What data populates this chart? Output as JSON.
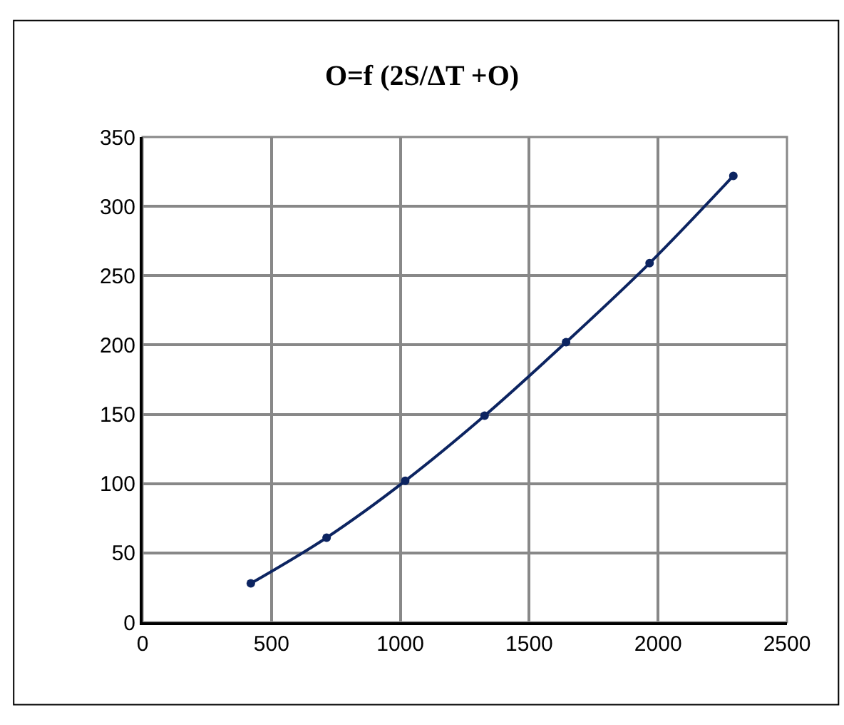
{
  "chart_data": {
    "type": "line",
    "title": "O=f (2S/ΔT +O)",
    "x": [
      420,
      714,
      1019,
      1327,
      1643,
      1967,
      2292
    ],
    "series": [
      {
        "color": "#0c2461",
        "values": [
          28,
          61,
          102,
          149,
          202,
          259,
          322
        ]
      }
    ],
    "xlim": [
      0,
      2500
    ],
    "xticks": [
      0,
      500,
      1000,
      1500,
      2000,
      2500
    ],
    "ylim": [
      0,
      350
    ],
    "yticks": [
      0,
      50,
      100,
      150,
      200,
      250,
      300,
      350
    ],
    "grid": true,
    "marker": "circle",
    "line_style": "solid"
  }
}
